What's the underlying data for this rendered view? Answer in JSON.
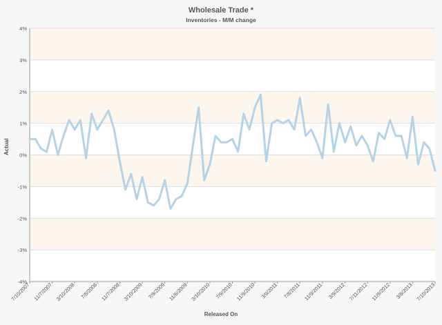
{
  "chart_data": {
    "type": "line",
    "title": "Wholesale Trade *",
    "subtitle": "Inventories - M/M change",
    "xlabel": "Released On",
    "ylabel": "Actual",
    "y_ticks": [
      "4%",
      "3%",
      "2%",
      "1%",
      "0%",
      "-1%",
      "-2%",
      "-3%",
      "-4%"
    ],
    "ylim": [
      -4,
      4
    ],
    "x_ticks": [
      "7/10/2007",
      "11/7/2007",
      "3/10/2008",
      "7/8/2008",
      "11/7/2008",
      "3/10/2009",
      "7/9/2009",
      "11/6/2009",
      "3/10/2010",
      "7/9/2010",
      "11/9/2010",
      "3/9/2011",
      "7/8/2011",
      "11/9/2011",
      "3/9/2012",
      "7/11/2012",
      "11/9/2012",
      "3/8/2013",
      "7/10/2013"
    ],
    "grid": true,
    "colors": {
      "line": "#b4d3e6",
      "band": "#fdf6ec",
      "grid": "#dddddd"
    },
    "series": [
      {
        "values": [
          0.5,
          0.5,
          0.2,
          0.1,
          0.8,
          0.0,
          0.6,
          1.1,
          0.8,
          1.1,
          -0.1,
          1.3,
          0.8,
          1.1,
          1.4,
          0.8,
          -0.2,
          -1.1,
          -0.6,
          -1.4,
          -0.7,
          -1.5,
          -1.6,
          -1.4,
          -0.8,
          -1.7,
          -1.4,
          -1.3,
          -0.9,
          0.3,
          1.5,
          -0.8,
          -0.3,
          0.6,
          0.4,
          0.4,
          0.5,
          0.1,
          1.3,
          0.8,
          1.5,
          1.9,
          -0.2,
          1.0,
          1.1,
          1.0,
          1.1,
          0.8,
          1.8,
          0.6,
          0.8,
          0.4,
          -0.1,
          1.6,
          0.1,
          1.0,
          0.4,
          0.9,
          0.3,
          0.6,
          0.3,
          -0.2,
          0.7,
          0.5,
          1.1,
          0.6,
          0.6,
          -0.1,
          1.2,
          -0.3,
          0.4,
          0.2,
          -0.5
        ]
      }
    ]
  }
}
